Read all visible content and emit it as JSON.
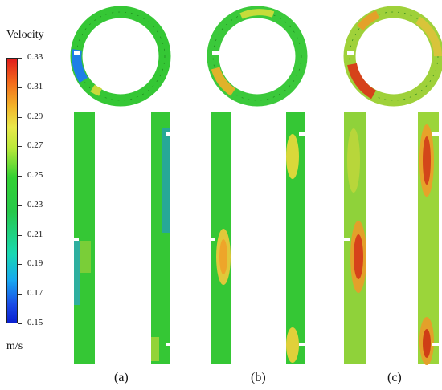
{
  "legend": {
    "title": "Velocity",
    "unit": "m/s",
    "ticks": [
      "0.33",
      "0.31",
      "0.29",
      "0.27",
      "0.25",
      "0.23",
      "0.21",
      "0.19",
      "0.17",
      "0.15"
    ]
  },
  "panels": [
    {
      "label": "(a)"
    },
    {
      "label": "(b)"
    },
    {
      "label": "(c)"
    }
  ],
  "colors": {
    "bg_green": "#34c934",
    "low_blue": "#1a55e0",
    "mid_yellow": "#d9e23a",
    "high_red": "#d63a14"
  }
}
